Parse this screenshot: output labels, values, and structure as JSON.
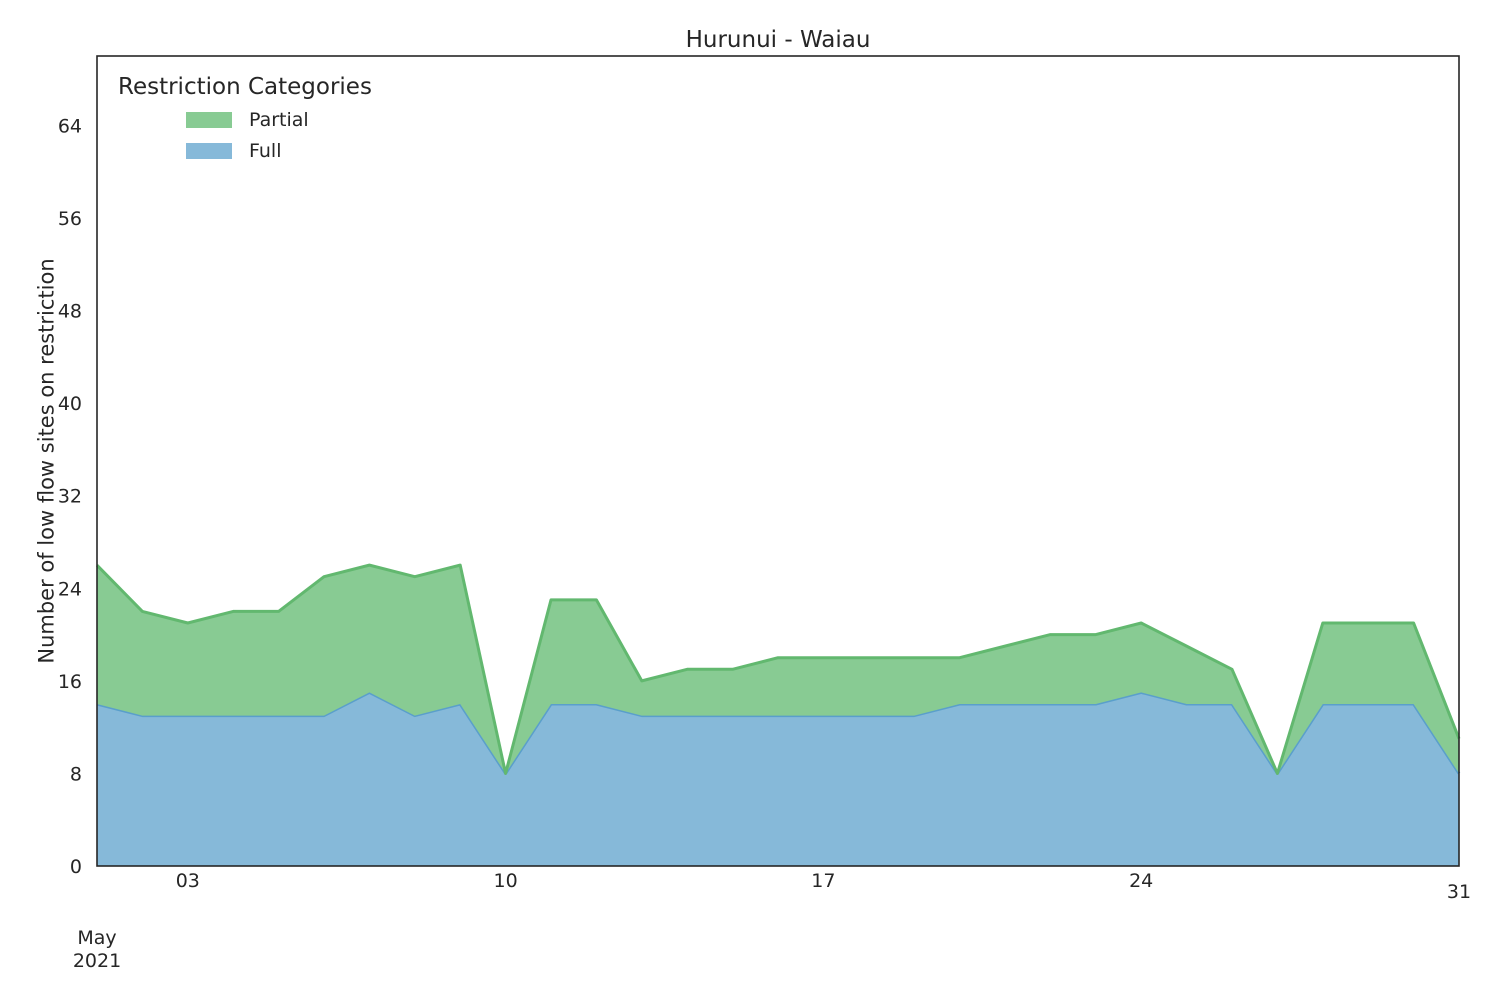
{
  "chart_data": {
    "type": "area",
    "stacked": true,
    "title": "Hurunui - Waiau",
    "xlabel": "",
    "ylabel": "Number of low flow sites on restriction",
    "ylim": [
      0,
      70
    ],
    "yticks": [
      0,
      8,
      16,
      24,
      32,
      40,
      48,
      56,
      64
    ],
    "xlim": [
      "2021-05-01",
      "2021-05-31"
    ],
    "xticks": [
      {
        "date": "2021-05-03",
        "label": "03"
      },
      {
        "date": "2021-05-10",
        "label": "10"
      },
      {
        "date": "2021-05-17",
        "label": "17"
      },
      {
        "date": "2021-05-24",
        "label": "24"
      },
      {
        "date": "2021-05-31",
        "label": "31"
      }
    ],
    "x_secondary_label": [
      "May",
      "2021"
    ],
    "grid": false,
    "legend": {
      "title": "Restriction Categories",
      "placement": "top-left"
    },
    "x": [
      "2021-05-01",
      "2021-05-02",
      "2021-05-03",
      "2021-05-04",
      "2021-05-05",
      "2021-05-06",
      "2021-05-07",
      "2021-05-08",
      "2021-05-09",
      "2021-05-10",
      "2021-05-11",
      "2021-05-12",
      "2021-05-13",
      "2021-05-14",
      "2021-05-15",
      "2021-05-16",
      "2021-05-17",
      "2021-05-18",
      "2021-05-19",
      "2021-05-20",
      "2021-05-21",
      "2021-05-22",
      "2021-05-23",
      "2021-05-24",
      "2021-05-25",
      "2021-05-26",
      "2021-05-27",
      "2021-05-28",
      "2021-05-29",
      "2021-05-30",
      "2021-05-31"
    ],
    "series": [
      {
        "name": "Full",
        "color": "#86b9d9",
        "line_color": "#5a9fcb",
        "values": [
          14,
          13,
          13,
          13,
          13,
          13,
          15,
          13,
          14,
          8,
          14,
          14,
          13,
          13,
          13,
          13,
          13,
          13,
          13,
          14,
          14,
          14,
          14,
          15,
          14,
          14,
          8,
          14,
          14,
          14,
          8
        ]
      },
      {
        "name": "Partial",
        "color": "#88cb93",
        "line_color": "#62b86f",
        "values": [
          12,
          9,
          8,
          9,
          9,
          12,
          11,
          12,
          12,
          0,
          9,
          9,
          3,
          4,
          4,
          5,
          5,
          5,
          5,
          4,
          5,
          6,
          6,
          6,
          5,
          3,
          0,
          7,
          7,
          7,
          3
        ]
      }
    ]
  }
}
